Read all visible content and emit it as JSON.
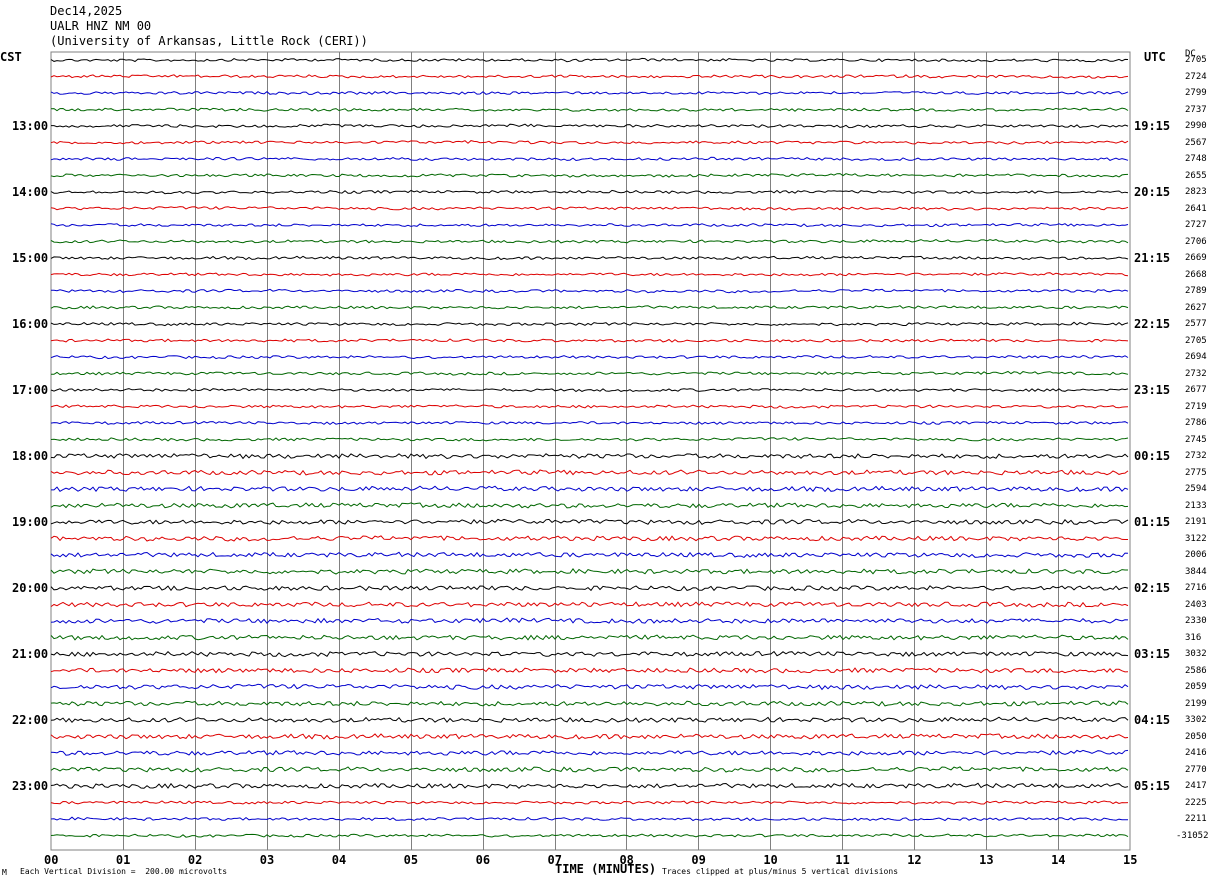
{
  "header": {
    "date": "Dec14,2025",
    "station": "UALR HNZ NM 00",
    "institution": "(University of Arkansas, Little Rock (CERI))"
  },
  "labels": {
    "left_zone": "CST",
    "right_zone": "UTC",
    "dc_header": "DC",
    "xlabel": "TIME (MINUTES)",
    "footer_left": "Each Vertical Division =  200.00 microvolts",
    "footer_right": "Traces clipped at plus/minus 5 vertical divisions",
    "corner_mark": "M"
  },
  "colors": {
    "trace_cycle": [
      "#000000",
      "#dd0000",
      "#0000cc",
      "#006600"
    ],
    "grid": "#808080"
  },
  "chart_data": {
    "type": "line",
    "title": "UALR HNZ NM 00",
    "xlabel": "TIME (MINUTES)",
    "xlim": [
      0,
      15
    ],
    "x_ticks": [
      "00",
      "01",
      "02",
      "03",
      "04",
      "05",
      "06",
      "07",
      "08",
      "09",
      "10",
      "11",
      "12",
      "13",
      "14",
      "15"
    ],
    "left_time_labels": [
      "13:00",
      "14:00",
      "15:00",
      "16:00",
      "17:00",
      "18:00",
      "19:00",
      "20:00",
      "21:00",
      "22:00",
      "23:00"
    ],
    "right_time_labels": [
      "19:15",
      "20:15",
      "21:15",
      "22:15",
      "23:15",
      "00:15",
      "01:15",
      "02:15",
      "03:15",
      "04:15",
      "05:15"
    ],
    "trace_count": 48,
    "dc_offsets": [
      "2705",
      "2724",
      "2799",
      "2737",
      "2990",
      "2567",
      "2748",
      "2655",
      "2823",
      "2641",
      "2727",
      "2706",
      "2669",
      "2668",
      "2789",
      "2627",
      "2577",
      "2705",
      "2694",
      "2732",
      "2677",
      "2719",
      "2786",
      "2745",
      "2732",
      "2775",
      "2594",
      "2133",
      "2191",
      "3122",
      "2006",
      "3844",
      "2716",
      "2403",
      "2330",
      "316",
      "3032",
      "2586",
      "2059",
      "2199",
      "3302",
      "2050",
      "2416",
      "2770",
      "2417",
      "2225",
      "2211",
      "-31052"
    ],
    "vertical_division_microvolts": 200.0,
    "clip_divisions": 5
  }
}
